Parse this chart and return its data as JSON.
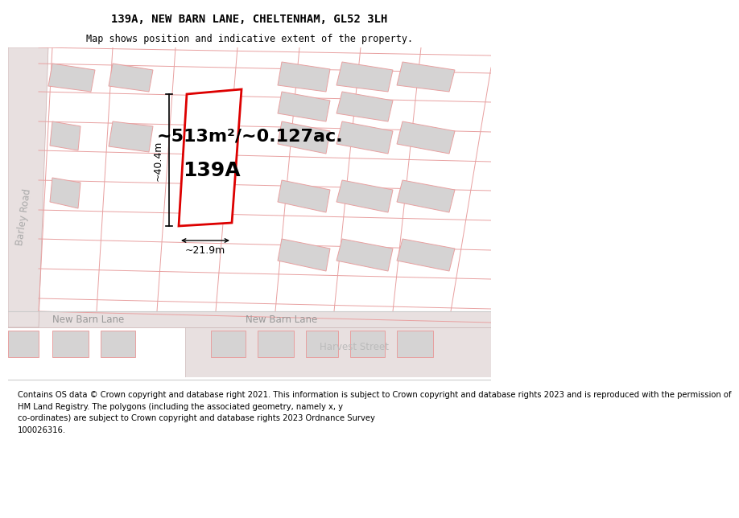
{
  "title_line1": "139A, NEW BARN LANE, CHELTENHAM, GL52 3LH",
  "title_line2": "Map shows position and indicative extent of the property.",
  "area_label": "~513m²/~0.127ac.",
  "property_label": "139A",
  "dim_height": "~40.4m",
  "dim_width": "~21.9m",
  "street_label_left": "New Barn Lane",
  "street_label_right": "New Barn Lane",
  "street_label_barley": "Barley Road",
  "street_label_harvest": "Harvest Street",
  "footer_text": "Contains OS data © Crown copyright and database right 2021. This information is subject to Crown copyright and database rights 2023 and is reproduced with the permission of\nHM Land Registry. The polygons (including the associated geometry, namely x, y\nco-ordinates) are subject to Crown copyright and database rights 2023 Ordnance Survey\n100026316.",
  "bg_color": "#f2f0f0",
  "plot_border": "#dd0000",
  "plot_fill": "#ffffff",
  "building_fill": "#d5d3d3",
  "building_edge": "#e8a0a0",
  "road_fill": "#e8e0e0",
  "road_edge": "#ccb0b0",
  "line_pink": "#e8a0a0",
  "title_fontsize": 10,
  "subtitle_fontsize": 8.5,
  "area_fontsize": 16,
  "property_fontsize": 18,
  "dim_fontsize": 9,
  "street_fontsize": 8.5,
  "footer_fontsize": 7.2,
  "map_xlim": [
    0,
    600
  ],
  "map_ylim": [
    0,
    410
  ]
}
